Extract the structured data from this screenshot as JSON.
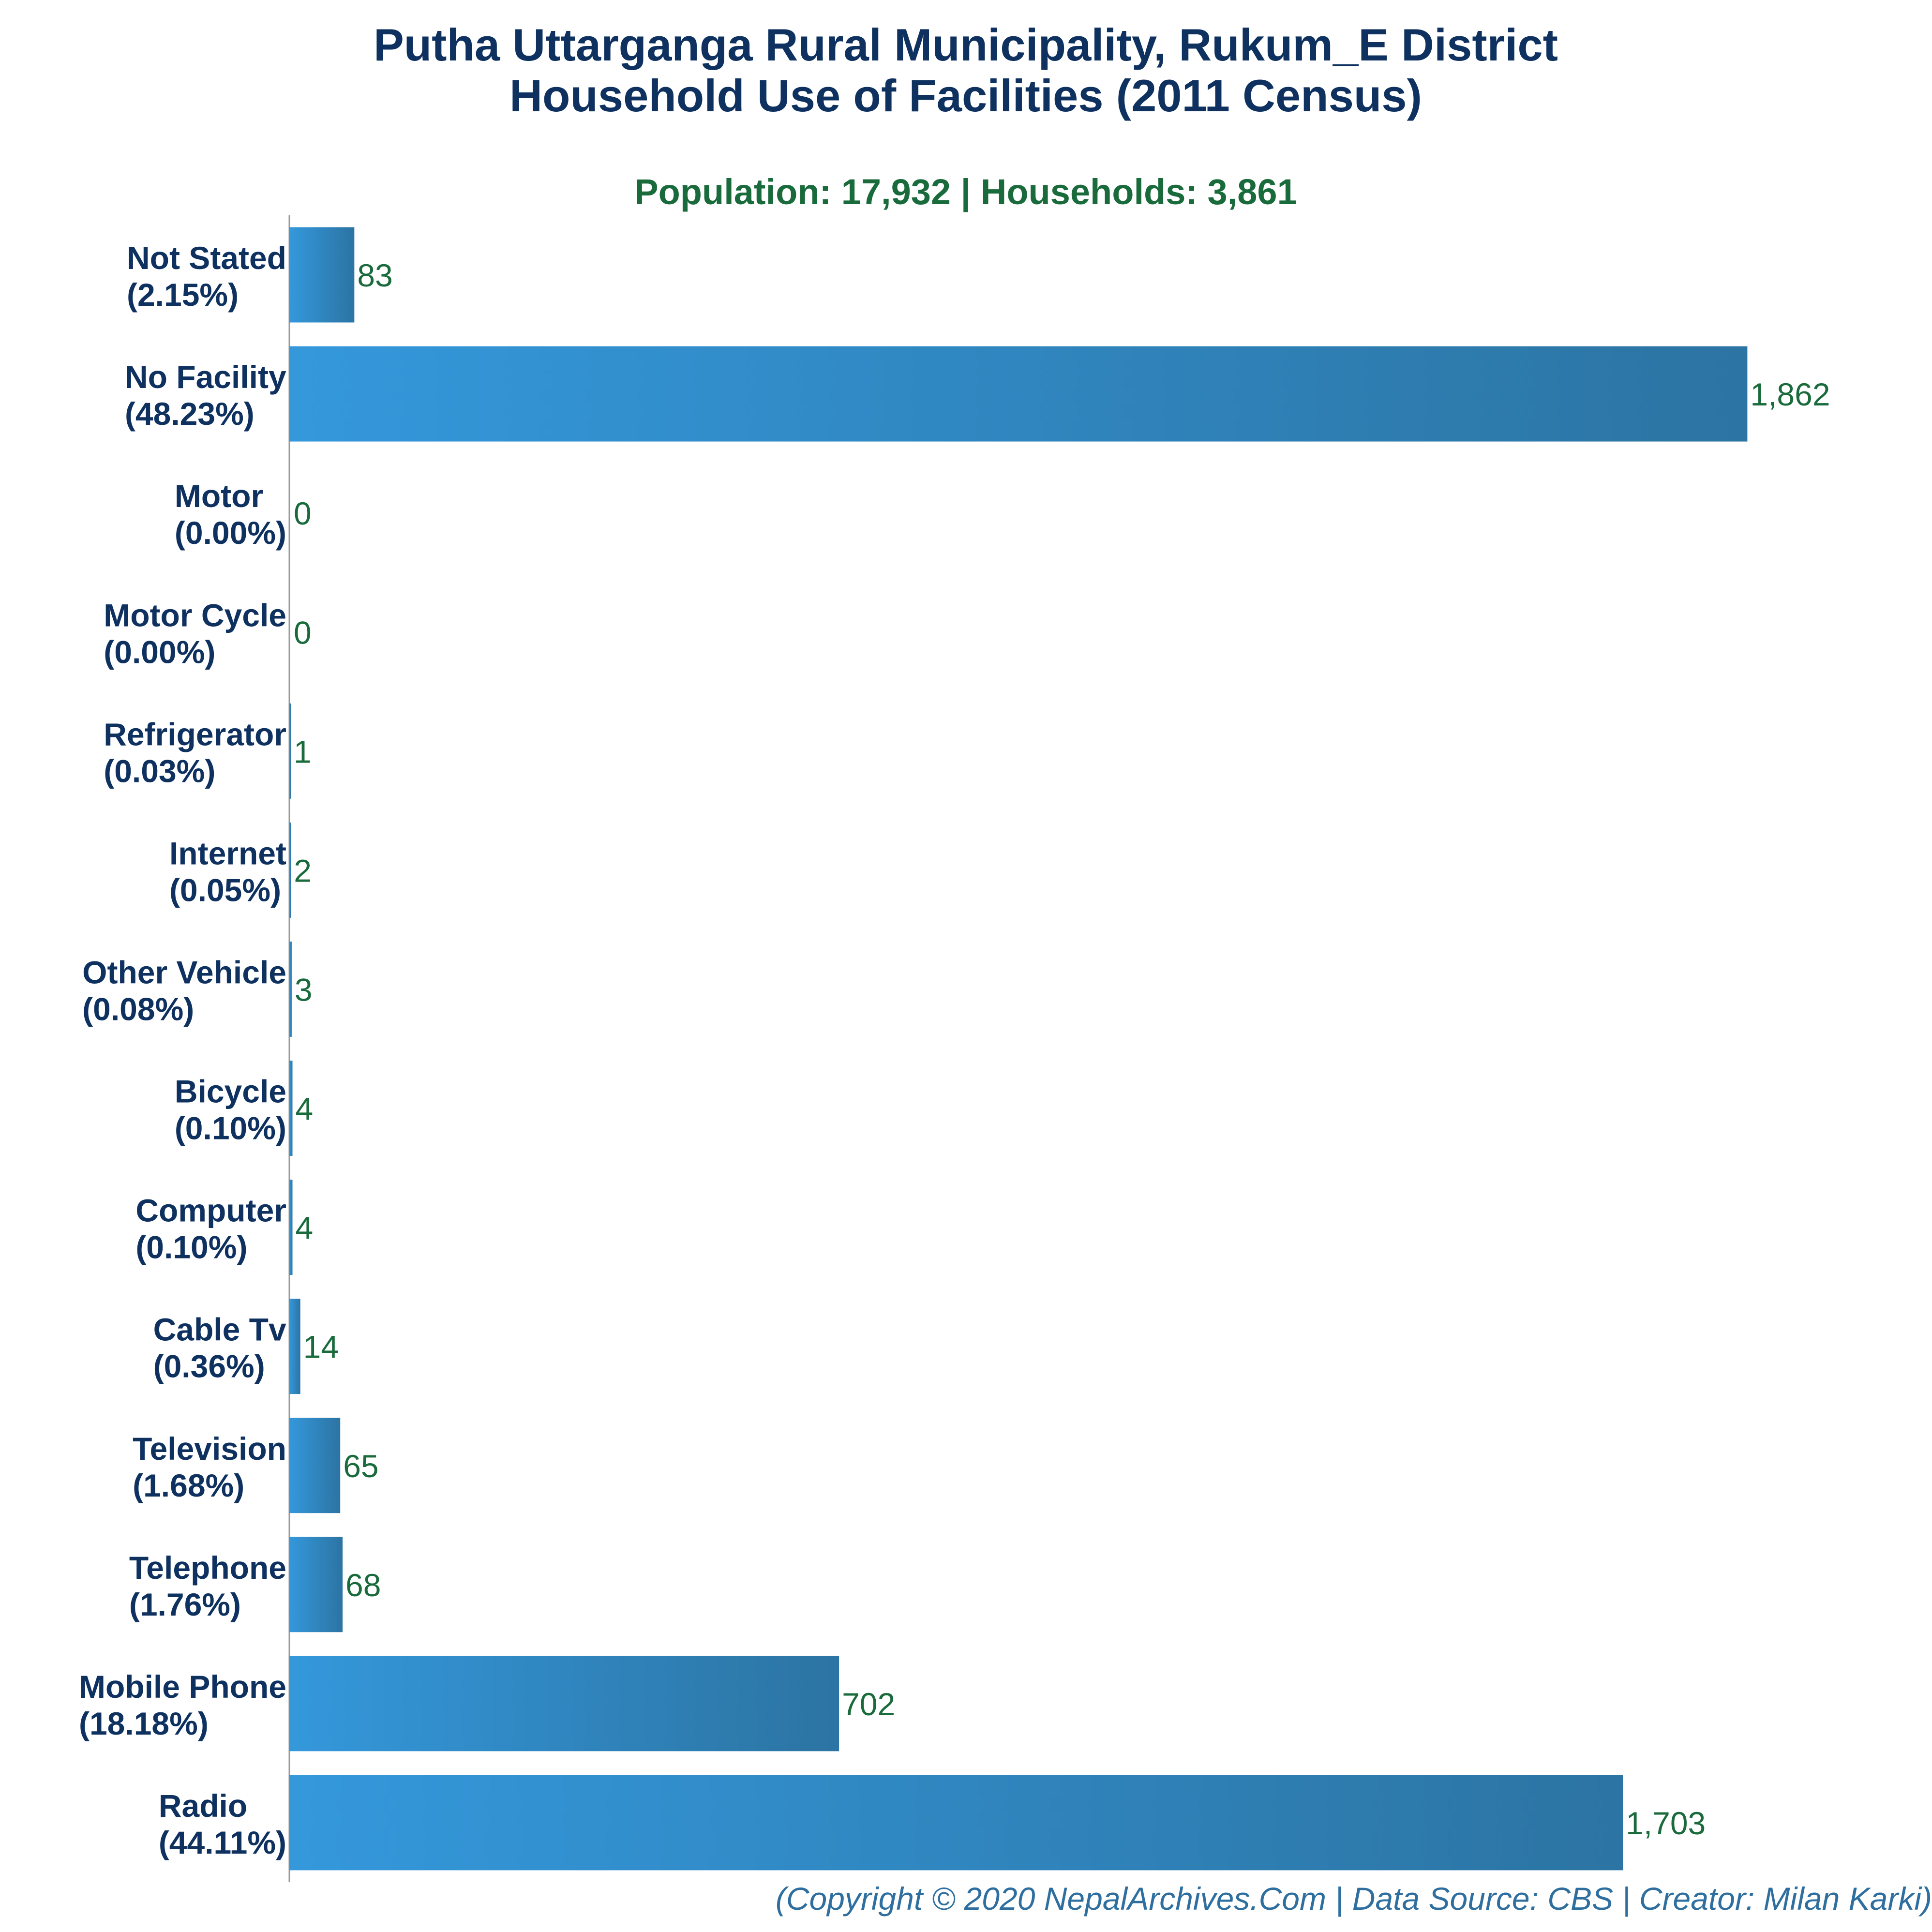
{
  "chart_data": {
    "type": "bar",
    "orientation": "horizontal",
    "title": [
      "Putha Uttarganga Rural Municipality, Rukum_E District",
      "Household Use of Facilities (2011 Census)"
    ],
    "subtitle": "Population: 17,932 | Households: 3,861",
    "categories": [
      "Not Stated",
      "No Facility",
      "Motor",
      "Motor Cycle",
      "Refrigerator",
      "Internet",
      "Other Vehicle",
      "Bicycle",
      "Computer",
      "Cable Tv",
      "Television",
      "Telephone",
      "Mobile Phone",
      "Radio"
    ],
    "percent_labels": [
      "(2.15%)",
      "(48.23%)",
      "(0.00%)",
      "(0.00%)",
      "(0.03%)",
      "(0.05%)",
      "(0.08%)",
      "(0.10%)",
      "(0.10%)",
      "(0.36%)",
      "(1.68%)",
      "(1.76%)",
      "(18.18%)",
      "(44.11%)"
    ],
    "values": [
      83,
      1862,
      0,
      0,
      1,
      2,
      3,
      4,
      4,
      14,
      65,
      68,
      702,
      1703
    ],
    "value_labels": [
      "83",
      "1,862",
      "0",
      "0",
      "1",
      "2",
      "3",
      "4",
      "4",
      "14",
      "65",
      "68",
      "702",
      "1,703"
    ],
    "xlim": [
      0,
      1960
    ],
    "grid": false,
    "bar_gradient": [
      "#3498db",
      "#2c74a3"
    ]
  },
  "footer": "(Copyright © 2020 NepalArchives.Com | Data Source: CBS | Creator: Milan Karki)",
  "colors": {
    "title": "#0e3160",
    "subtitle": "#1a6b3c",
    "value_label": "#1a6b3c",
    "footer": "#2f6f9f"
  }
}
